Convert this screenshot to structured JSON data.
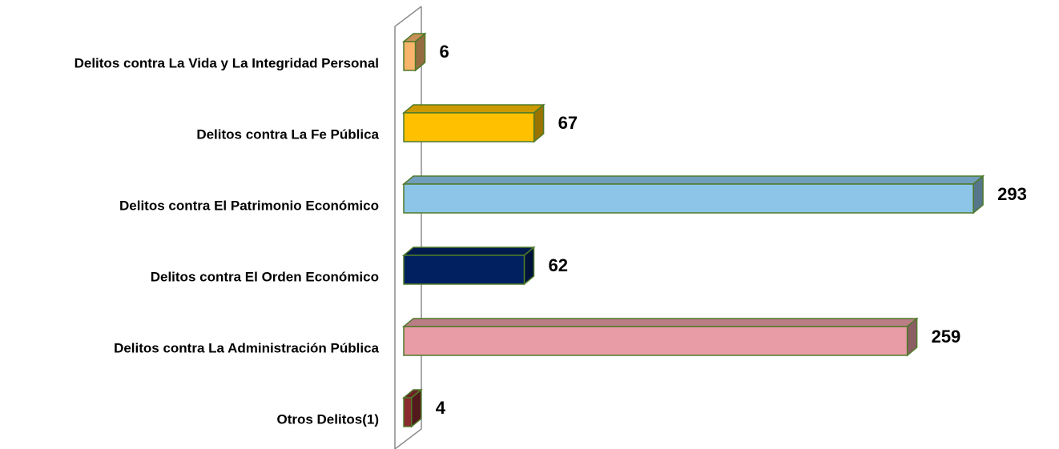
{
  "chart_data": {
    "type": "bar",
    "orientation": "horizontal",
    "categories": [
      "Delitos contra La Vida y La Integridad Personal",
      "Delitos contra La Fe Pública",
      "Delitos contra El Patrimonio Económico",
      "Delitos contra El Orden Económico",
      "Delitos contra La Administración Pública",
      "Otros Delitos(1)"
    ],
    "values": [
      6,
      67,
      293,
      62,
      259,
      4
    ],
    "colors": [
      "#F9B46B",
      "#FFC000",
      "#8DC5E8",
      "#002060",
      "#E89CA6",
      "#8B2A2F"
    ]
  }
}
